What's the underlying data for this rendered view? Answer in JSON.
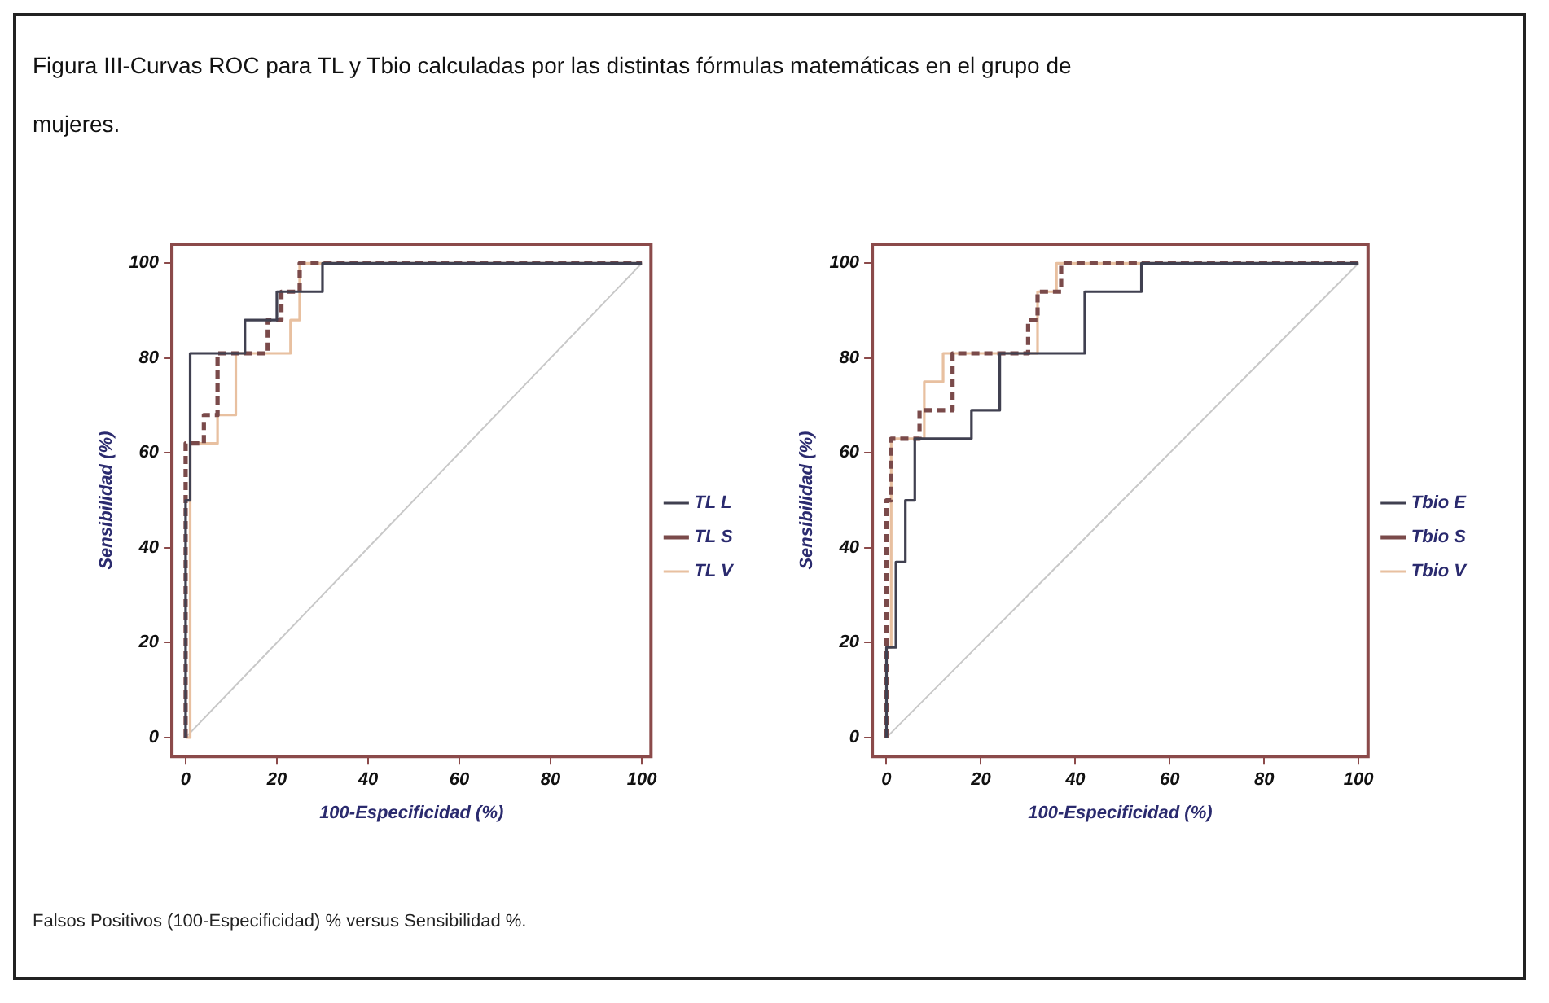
{
  "chart_data": [
    {
      "type": "line",
      "title": "Figura III-Curvas ROC para TL y Tbio calculadas por las distintas fórmulas matemáticas en el grupo de mujeres.",
      "annotations": [
        "Falsos Positivos (100-Especificidad) % versus Sensibilidad %."
      ],
      "xlabel": "100-Especificidad (%)",
      "ylabel": "Sensibilidad (%)",
      "xlim": [
        -3,
        102
      ],
      "ylim": [
        -4,
        104
      ],
      "xticks": [
        0,
        20,
        40,
        60,
        80,
        100
      ],
      "yticks": [
        0,
        20,
        40,
        60,
        80,
        100
      ],
      "grid": false,
      "legend": "right",
      "marker": "none",
      "series": [
        {
          "name": "TL L",
          "color": "#404050",
          "line_style": "solid",
          "x": [
            0,
            0,
            1,
            1,
            13,
            13,
            20,
            20,
            30,
            30,
            100
          ],
          "values": [
            0,
            50,
            50,
            81,
            81,
            88,
            88,
            94,
            94,
            100,
            100
          ]
        },
        {
          "name": "TL S",
          "color": "#7a4a4a",
          "line_style": "dashed",
          "x": [
            0,
            0,
            4,
            4,
            7,
            7,
            18,
            18,
            21,
            21,
            25,
            25,
            100
          ],
          "values": [
            0,
            62,
            62,
            68,
            68,
            81,
            81,
            88,
            88,
            94,
            94,
            100,
            100
          ]
        },
        {
          "name": "TL V",
          "color": "#e8c0a0",
          "line_style": "solid",
          "x": [
            0,
            1,
            1,
            7,
            7,
            11,
            11,
            23,
            23,
            25,
            25,
            100
          ],
          "values": [
            0,
            0,
            62,
            62,
            68,
            68,
            81,
            81,
            88,
            88,
            100,
            100
          ]
        },
        {
          "color": "#c8c8c8",
          "line_style": "solid",
          "x": [
            0,
            100
          ],
          "values": [
            0,
            100
          ]
        }
      ]
    },
    {
      "type": "line",
      "xlabel": "100-Especificidad (%)",
      "ylabel": "Sensibilidad (%)",
      "xlim": [
        -3,
        102
      ],
      "ylim": [
        -4,
        104
      ],
      "xticks": [
        0,
        20,
        40,
        60,
        80,
        100
      ],
      "yticks": [
        0,
        20,
        40,
        60,
        80,
        100
      ],
      "grid": false,
      "legend": "right",
      "marker": "none",
      "series": [
        {
          "name": "Tbio E",
          "color": "#404050",
          "line_style": "solid",
          "x": [
            0,
            0,
            2,
            2,
            4,
            4,
            6,
            6,
            18,
            18,
            24,
            24,
            42,
            42,
            54,
            54,
            100
          ],
          "values": [
            0,
            19,
            19,
            37,
            37,
            50,
            50,
            63,
            63,
            69,
            69,
            81,
            81,
            94,
            94,
            100,
            100
          ]
        },
        {
          "name": "Tbio S",
          "color": "#7a4a4a",
          "line_style": "dashed",
          "x": [
            0,
            0,
            1,
            1,
            7,
            7,
            14,
            14,
            30,
            30,
            32,
            32,
            37,
            37,
            100
          ],
          "values": [
            0,
            50,
            50,
            63,
            63,
            69,
            69,
            81,
            81,
            88,
            88,
            94,
            94,
            100,
            100
          ]
        },
        {
          "name": "Tbio V",
          "color": "#e8c0a0",
          "line_style": "solid",
          "x": [
            0,
            0,
            1,
            1,
            8,
            8,
            12,
            12,
            32,
            32,
            36,
            36,
            100
          ],
          "values": [
            0,
            19,
            19,
            63,
            63,
            75,
            75,
            81,
            81,
            94,
            94,
            100,
            100
          ]
        },
        {
          "color": "#c8c8c8",
          "line_style": "solid",
          "x": [
            0,
            100
          ],
          "values": [
            0,
            100
          ]
        }
      ]
    }
  ]
}
